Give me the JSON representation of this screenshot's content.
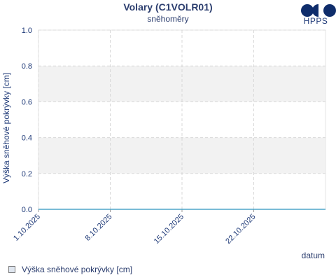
{
  "header": {
    "title": "Volary (C1VOLR01)",
    "subtitle": "sněhoměry",
    "logo_text": "HPPS"
  },
  "chart_data": {
    "type": "line",
    "title": "Volary (C1VOLR01)",
    "subtitle": "sněhoměry",
    "xlabel": "datum",
    "ylabel": "Výška sněhové pokrývky [cm]",
    "ylim": [
      0.0,
      1.0
    ],
    "yticks": [
      "0.0",
      "0.2",
      "0.4",
      "0.6",
      "0.8",
      "1.0"
    ],
    "xlim": [
      "2025-10-01",
      "2025-10-29"
    ],
    "xticks": [
      "1.10.2025",
      "8.10.2025",
      "15.10.2025",
      "22.10.2025"
    ],
    "grid": true,
    "legend_position": "bottom-left",
    "series": [
      {
        "name": "Výška sněhové pokrývky [cm]",
        "x": [
          "2025-10-01",
          "2025-10-29"
        ],
        "values": [
          0.0,
          0.0
        ],
        "color": "#4da6c8"
      }
    ]
  },
  "colors": {
    "text": "#2b3d6e",
    "band": "#f2f2f2",
    "grid": "#d8d8d8",
    "line": "#4da6c8",
    "logo": "#0f2d6b"
  }
}
